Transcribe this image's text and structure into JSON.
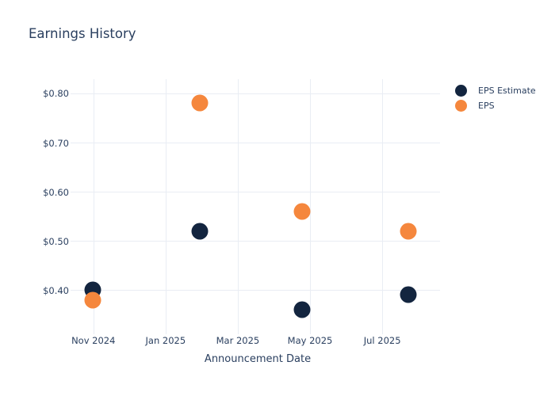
{
  "chart_data": {
    "type": "scatter",
    "title": "Earnings History",
    "xlabel": "Announcement Date",
    "ylabel": "",
    "grid": true,
    "legend_position": "top-right-outside",
    "x_ticks": [
      {
        "label": "Nov 2024",
        "months": 0
      },
      {
        "label": "Jan 2025",
        "months": 2
      },
      {
        "label": "Mar 2025",
        "months": 4
      },
      {
        "label": "May 2025",
        "months": 6
      },
      {
        "label": "Jul 2025",
        "months": 8
      }
    ],
    "y_ticks": [
      {
        "label": "$0.40",
        "value": 0.4
      },
      {
        "label": "$0.50",
        "value": 0.5
      },
      {
        "label": "$0.60",
        "value": 0.6
      },
      {
        "label": "$0.70",
        "value": 0.7
      },
      {
        "label": "$0.80",
        "value": 0.8
      }
    ],
    "xlim_months": [
      -0.5,
      9.6
    ],
    "ylim": [
      0.318,
      0.829
    ],
    "series": [
      {
        "name": "EPS Estimate",
        "color": "#13253f",
        "points": [
          {
            "x": "2024-10-31",
            "y": 0.4
          },
          {
            "x": "2025-01-30",
            "y": 0.52
          },
          {
            "x": "2025-04-25",
            "y": 0.36
          },
          {
            "x": "2025-07-23",
            "y": 0.39
          }
        ]
      },
      {
        "name": "EPS",
        "color": "#f5873d",
        "points": [
          {
            "x": "2024-10-31",
            "y": 0.38
          },
          {
            "x": "2025-01-30",
            "y": 0.78
          },
          {
            "x": "2025-04-25",
            "y": 0.56
          },
          {
            "x": "2025-07-23",
            "y": 0.52
          }
        ]
      }
    ],
    "text_color": "#2a3f5f",
    "gridline_color": "#e9edf4"
  }
}
